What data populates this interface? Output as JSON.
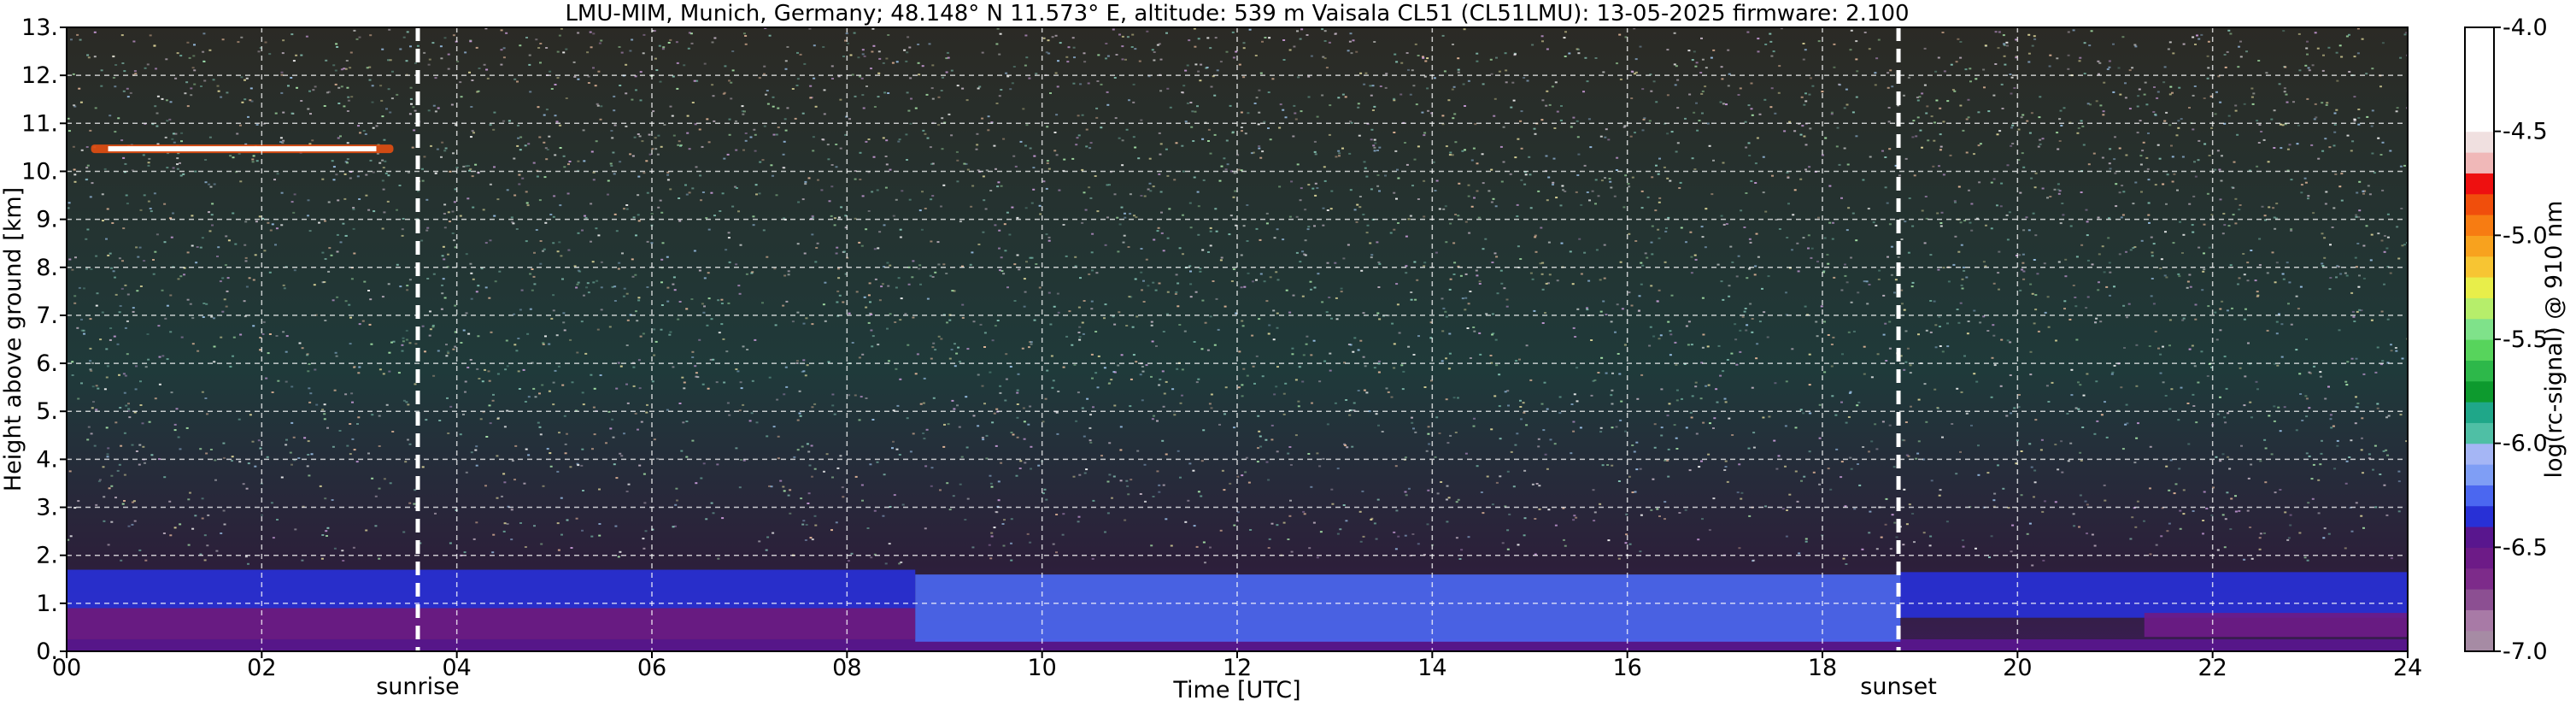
{
  "title": "LMU-MIM, Munich, Germany; 48.148° N 11.573° E, altitude: 539 m    Vaisala CL51 (CL51LMU): 13-05-2025    firmware: 2.100",
  "chart_data": {
    "type": "heatmap",
    "title": "LMU-MIM, Munich, Germany; 48.148° N 11.573° E, altitude: 539 m    Vaisala CL51 (CL51LMU): 13-05-2025    firmware: 2.100",
    "xlabel": "Time [UTC]",
    "ylabel": "Height above ground [km]",
    "xlim": [
      0,
      24
    ],
    "ylim": [
      0,
      13
    ],
    "x_ticks": [
      0,
      2,
      4,
      6,
      8,
      10,
      12,
      14,
      16,
      18,
      20,
      22,
      24
    ],
    "x_tick_labels": [
      "00",
      "02",
      "04",
      "06",
      "08",
      "10",
      "12",
      "14",
      "16",
      "18",
      "20",
      "22",
      "24"
    ],
    "y_ticks": [
      0,
      1,
      2,
      3,
      4,
      5,
      6,
      7,
      8,
      9,
      10,
      11,
      12,
      13
    ],
    "y_tick_labels": [
      "0.",
      "1.",
      "2.",
      "3.",
      "4.",
      "5.",
      "6.",
      "7.",
      "8.",
      "9.",
      "10.",
      "11.",
      "12.",
      "13."
    ],
    "grid": true,
    "colorbar": {
      "label": "log(rc-signal) @ 910 nm",
      "range": [
        -7.0,
        -4.0
      ],
      "ticks": [
        -7.0,
        -6.5,
        -6.0,
        -5.5,
        -5.0,
        -4.5,
        -4.0
      ],
      "tick_labels": [
        "-7.0",
        "-6.5",
        "-6.0",
        "-5.5",
        "-5.0",
        "-4.5",
        "-4.0"
      ],
      "colors": [
        "#a68ba4",
        "#a87aa6",
        "#8c4f92",
        "#7d2b8a",
        "#6d1b87",
        "#59168e",
        "#2830d6",
        "#4b67f0",
        "#7f9ef5",
        "#a5b6f5",
        "#4fbfa5",
        "#1fa789",
        "#0d9a2e",
        "#2db84a",
        "#57d45c",
        "#7fe28a",
        "#b6ee6b",
        "#e8ee4a",
        "#f7c533",
        "#f8a21e",
        "#f77c12",
        "#f04e0c",
        "#ee1010",
        "#f0b8b8",
        "#f0e0e0",
        "#ffffff",
        "#ffffff",
        "#ffffff",
        "#ffffff",
        "#ffffff"
      ]
    },
    "markers": [
      {
        "label": "sunrise",
        "time": 3.6
      },
      {
        "label": "sunset",
        "time": 18.78
      }
    ],
    "layers": [
      {
        "from_time": 0,
        "to_time": 24,
        "base_km": 0.0,
        "top_km": 0.25,
        "value": -6.4
      },
      {
        "from_time": 0,
        "to_time": 8.7,
        "base_km": 0.25,
        "top_km": 0.9,
        "value": -6.55
      },
      {
        "from_time": 0,
        "to_time": 8.7,
        "base_km": 0.9,
        "top_km": 1.7,
        "value": -6.35
      },
      {
        "from_time": 8.7,
        "to_time": 18.8,
        "base_km": 0.2,
        "top_km": 1.6,
        "value": -6.2
      },
      {
        "from_time": 18.8,
        "to_time": 24,
        "base_km": 0.7,
        "top_km": 1.65,
        "value": -6.35
      },
      {
        "from_time": 21.3,
        "to_time": 24,
        "base_km": 0.3,
        "top_km": 0.8,
        "value": -6.55
      }
    ],
    "cloud": {
      "from_time": 0.25,
      "to_time": 3.35,
      "height_km": 10.47,
      "value": -4.3
    }
  }
}
